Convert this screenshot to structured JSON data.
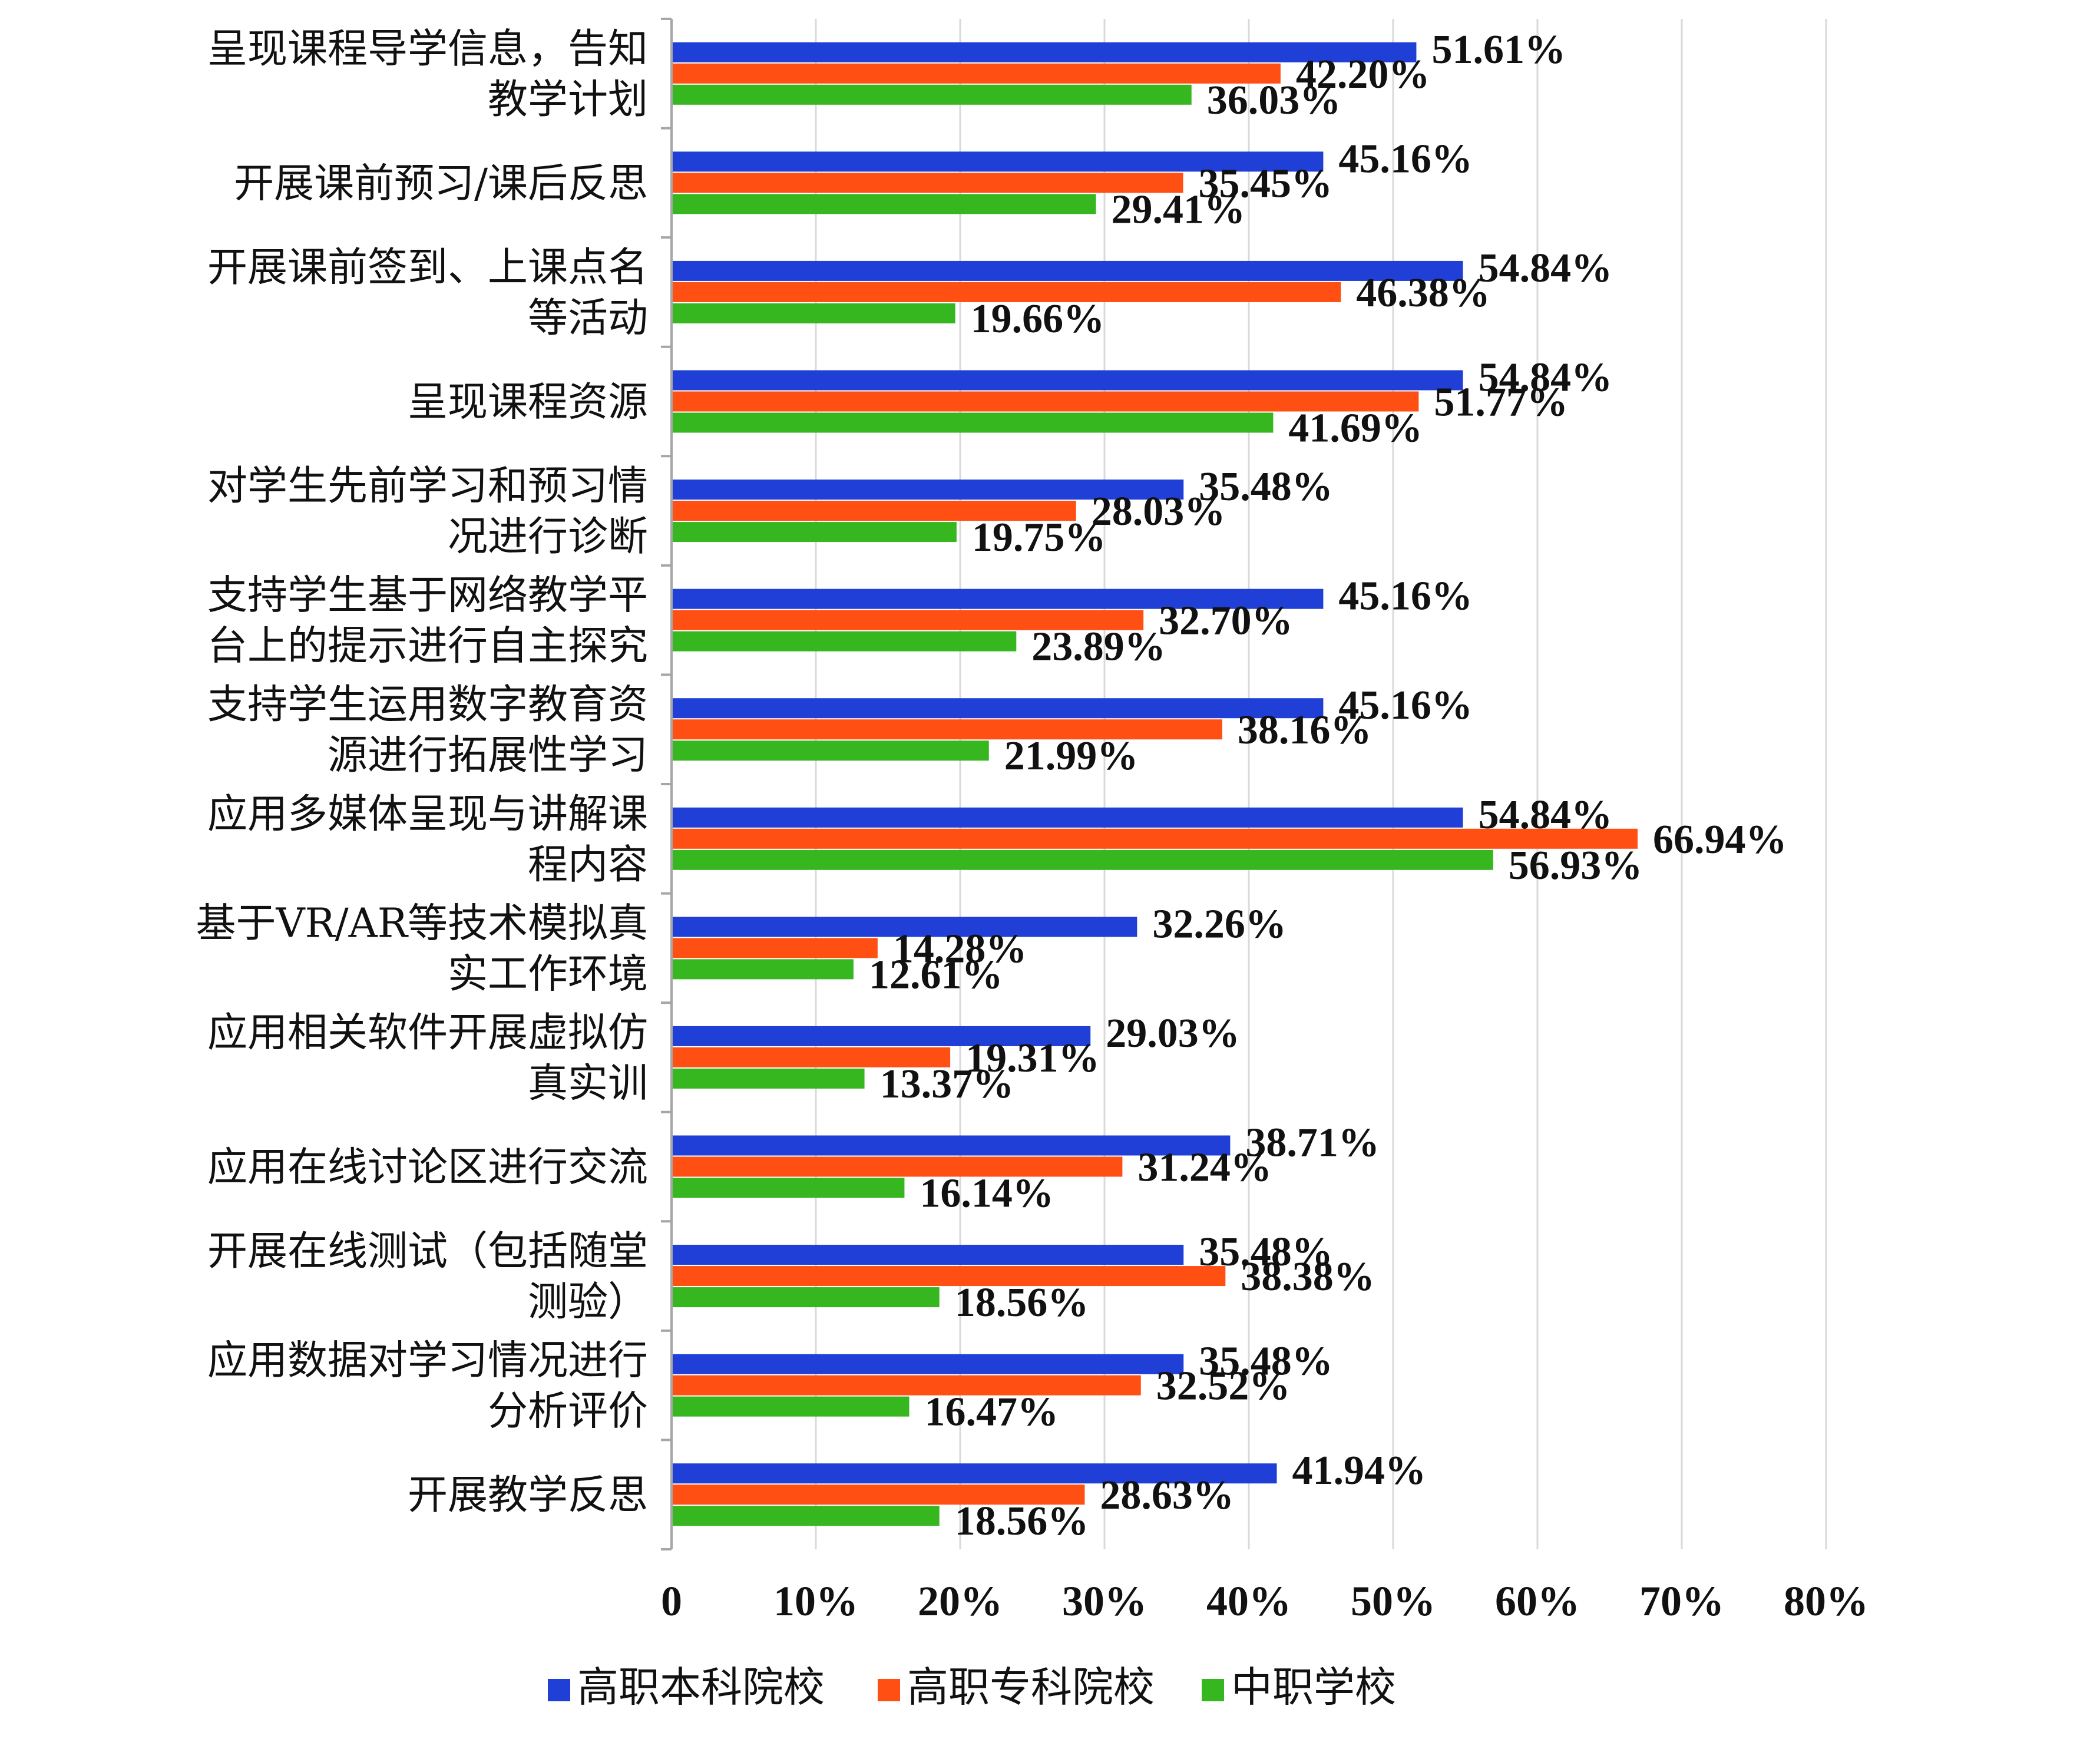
{
  "chart_data": {
    "type": "bar",
    "orientation": "horizontal",
    "categories": [
      [
        "呈现课程导学信息，告知",
        "教学计划"
      ],
      [
        "开展课前预习/课后反思"
      ],
      [
        "开展课前签到、上课点名",
        "等活动"
      ],
      [
        "呈现课程资源"
      ],
      [
        "对学生先前学习和预习情",
        "况进行诊断"
      ],
      [
        "支持学生基于网络教学平",
        "台上的提示进行自主探究"
      ],
      [
        "支持学生运用数字教育资",
        "源进行拓展性学习"
      ],
      [
        "应用多媒体呈现与讲解课",
        "程内容"
      ],
      [
        "基于VR/AR等技术模拟真",
        "实工作环境"
      ],
      [
        "应用相关软件开展虚拟仿",
        "真实训"
      ],
      [
        "应用在线讨论区进行交流"
      ],
      [
        "开展在线测试（包括随堂",
        "测验）"
      ],
      [
        "应用数据对学习情况进行",
        "分析评价"
      ],
      [
        "开展教学反思"
      ]
    ],
    "series": [
      {
        "name": "高职本科院校",
        "color": "#1f3fd6",
        "values": [
          51.61,
          45.16,
          54.84,
          54.84,
          35.48,
          45.16,
          45.16,
          54.84,
          32.26,
          29.03,
          38.71,
          35.48,
          35.48,
          41.94
        ],
        "labels": [
          "51.61%",
          "45.16%",
          "54.84%",
          "54.84%",
          "35.48%",
          "45.16%",
          "45.16%",
          "54.84%",
          "32.26%",
          "29.03%",
          "38.71%",
          "35.48%",
          "35.48%",
          "41.94%"
        ]
      },
      {
        "name": "高职专科院校",
        "color": "#ff4f12",
        "values": [
          42.2,
          35.45,
          46.38,
          51.77,
          28.03,
          32.7,
          38.16,
          66.94,
          14.28,
          19.31,
          31.24,
          38.38,
          32.52,
          28.63
        ],
        "labels": [
          "42.20%",
          "35.45%",
          "46.38%",
          "51.77%",
          "28.03%",
          "32.70%",
          "38.16%",
          "66.94%",
          "14.28%",
          "19.31%",
          "31.24%",
          "38.38%",
          "32.52%",
          "28.63%"
        ]
      },
      {
        "name": "中职学校",
        "color": "#36b61f",
        "values": [
          36.03,
          29.41,
          19.66,
          41.69,
          19.75,
          23.89,
          21.99,
          56.93,
          12.61,
          13.37,
          16.14,
          18.56,
          16.47,
          18.56
        ],
        "labels": [
          "36.03%",
          "29.41%",
          "19.66%",
          "41.69%",
          "19.75%",
          "23.89%",
          "21.99%",
          "56.93%",
          "12.61%",
          "13.37%",
          "16.14%",
          "18.56%",
          "16.47%",
          "18.56%"
        ]
      }
    ],
    "xlim": [
      0,
      80
    ],
    "xticks": [
      0,
      10,
      20,
      30,
      40,
      50,
      60,
      70,
      80
    ],
    "xtick_labels": [
      "0",
      "10%",
      "20%",
      "30%",
      "40%",
      "50%",
      "60%",
      "70%",
      "80%"
    ],
    "grid": true,
    "legend_position": "bottom"
  }
}
